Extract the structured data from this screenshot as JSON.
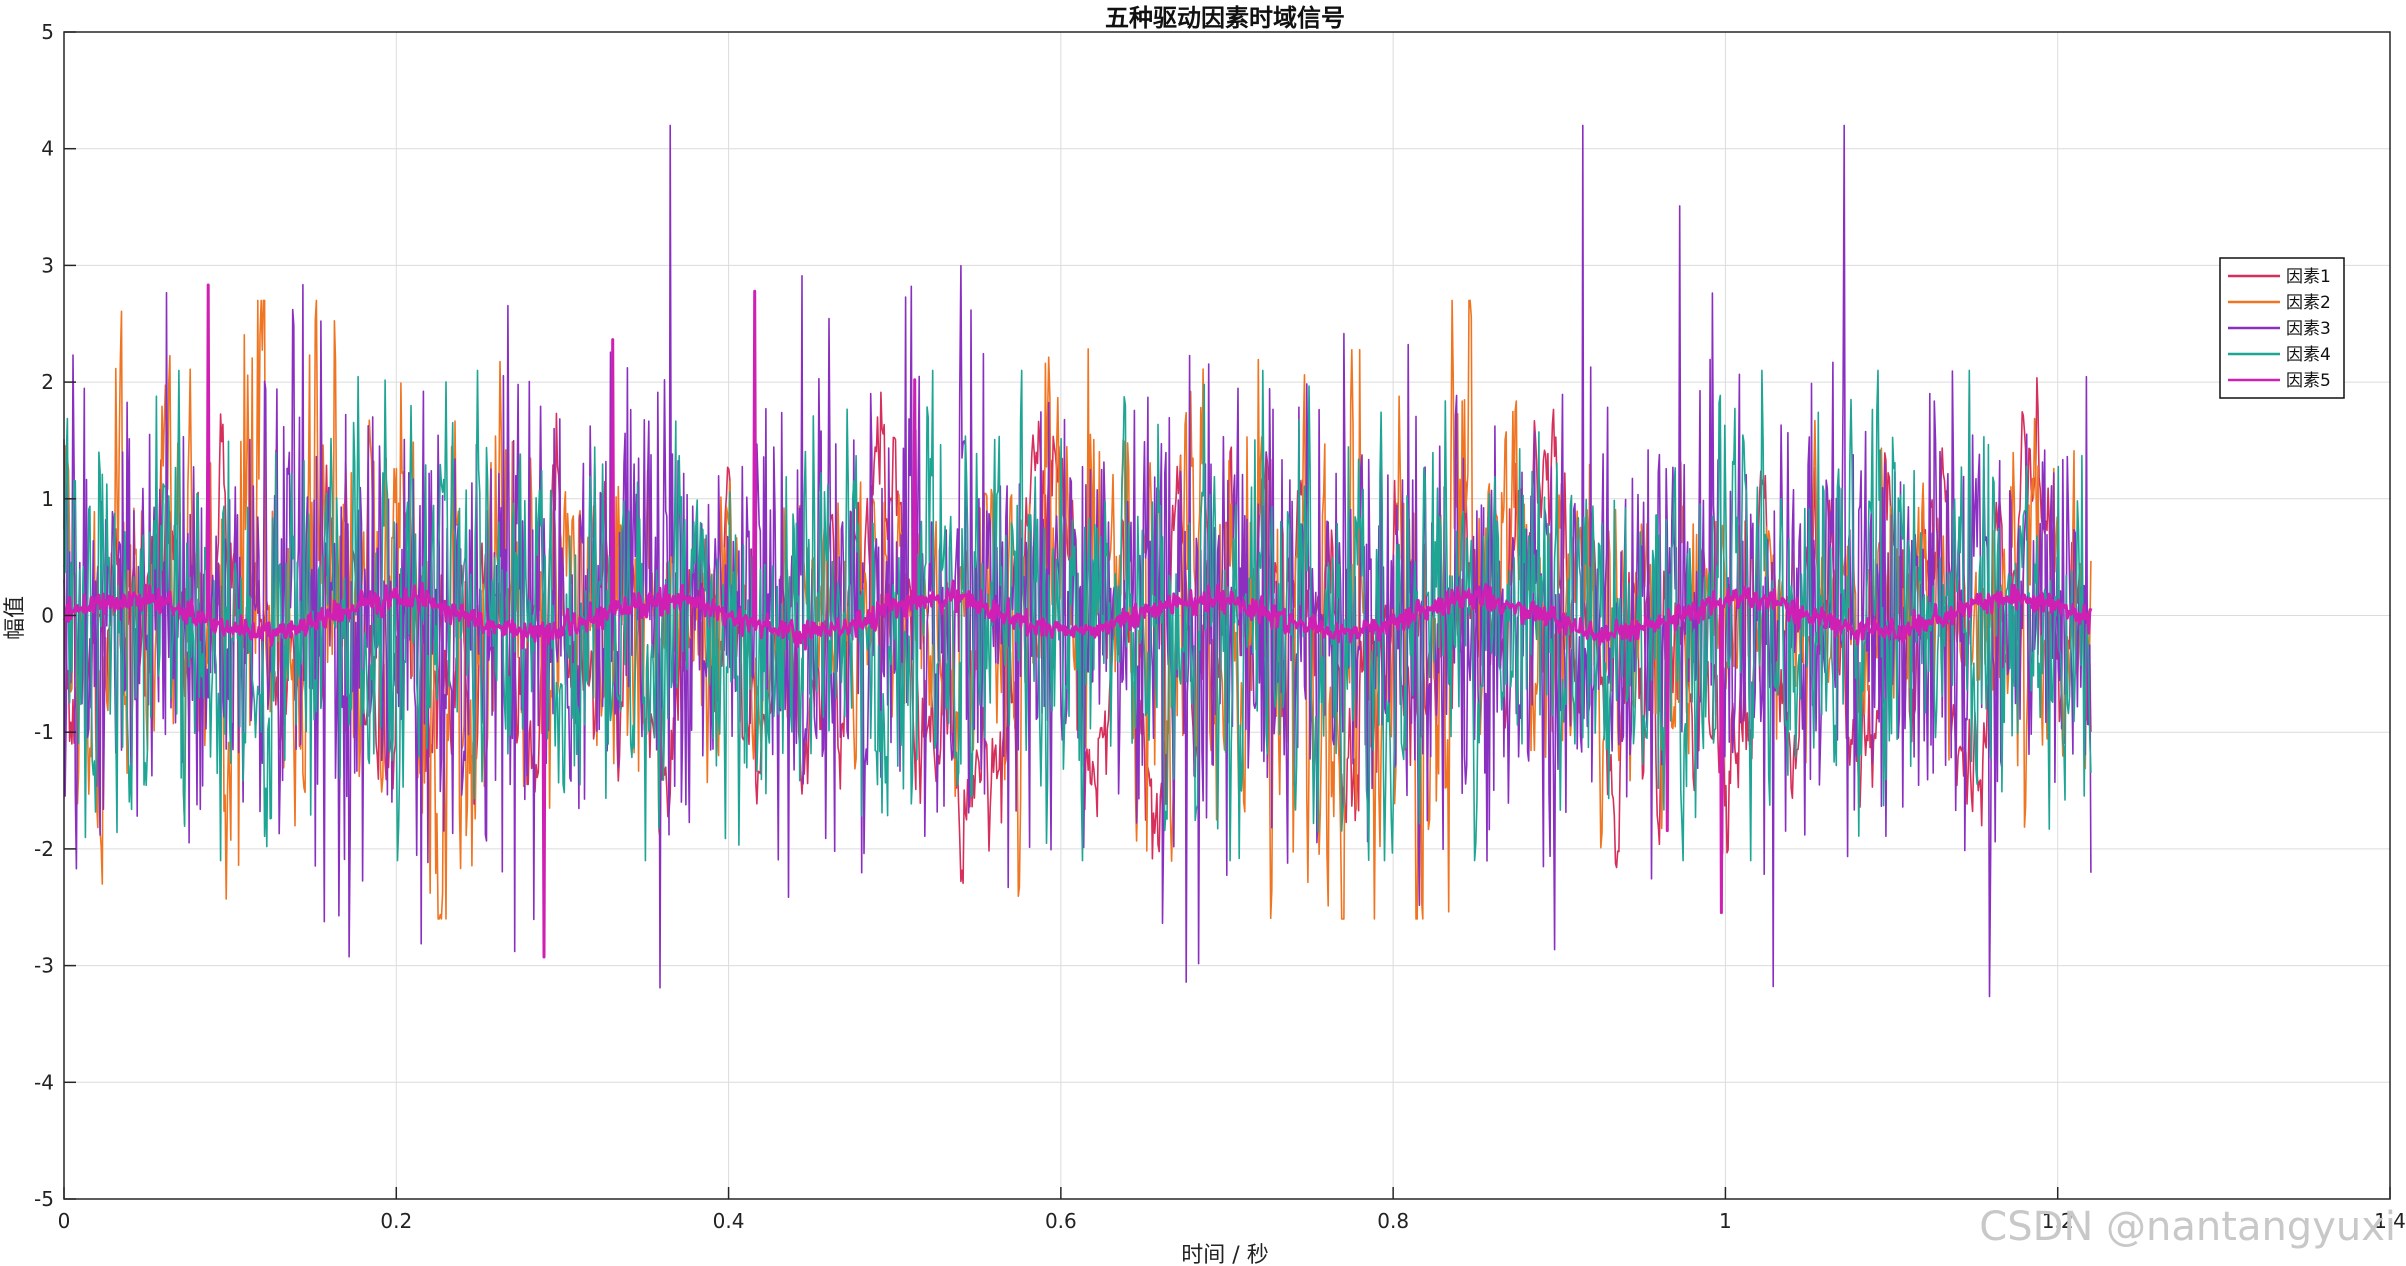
{
  "watermark": "CSDN @nantangyuxi",
  "chart_data": {
    "type": "line",
    "title": "五种驱动因素时域信号",
    "xlabel": "时间 / 秒",
    "ylabel": "幅值",
    "xlim": [
      0,
      1.4
    ],
    "ylim": [
      -5,
      5
    ],
    "xticks": [
      0,
      0.2,
      0.4,
      0.6,
      0.8,
      1,
      1.2,
      1.4
    ],
    "xtick_labels": [
      "0",
      "0.2",
      "0.4",
      "0.6",
      "0.8",
      "1",
      "1.2",
      "1.4"
    ],
    "yticks": [
      5,
      4,
      3,
      2,
      1,
      0,
      -1,
      -2,
      -3,
      -4,
      -5
    ],
    "ytick_labels": [
      "5",
      "4",
      "3",
      "2",
      "1",
      "0",
      "-1",
      "-2",
      "-3",
      "-4",
      "-5"
    ],
    "grid": true,
    "legend_position": "right",
    "x_start": 0,
    "x_end": 1.22,
    "series": [
      {
        "name": "因素1",
        "color": "#d62f5b"
      },
      {
        "name": "因素2",
        "color": "#f07522"
      },
      {
        "name": "因素3",
        "color": "#8a2fc0"
      },
      {
        "name": "因素4",
        "color": "#1ea594"
      },
      {
        "name": "因素5",
        "color": "#d020b4"
      }
    ]
  }
}
